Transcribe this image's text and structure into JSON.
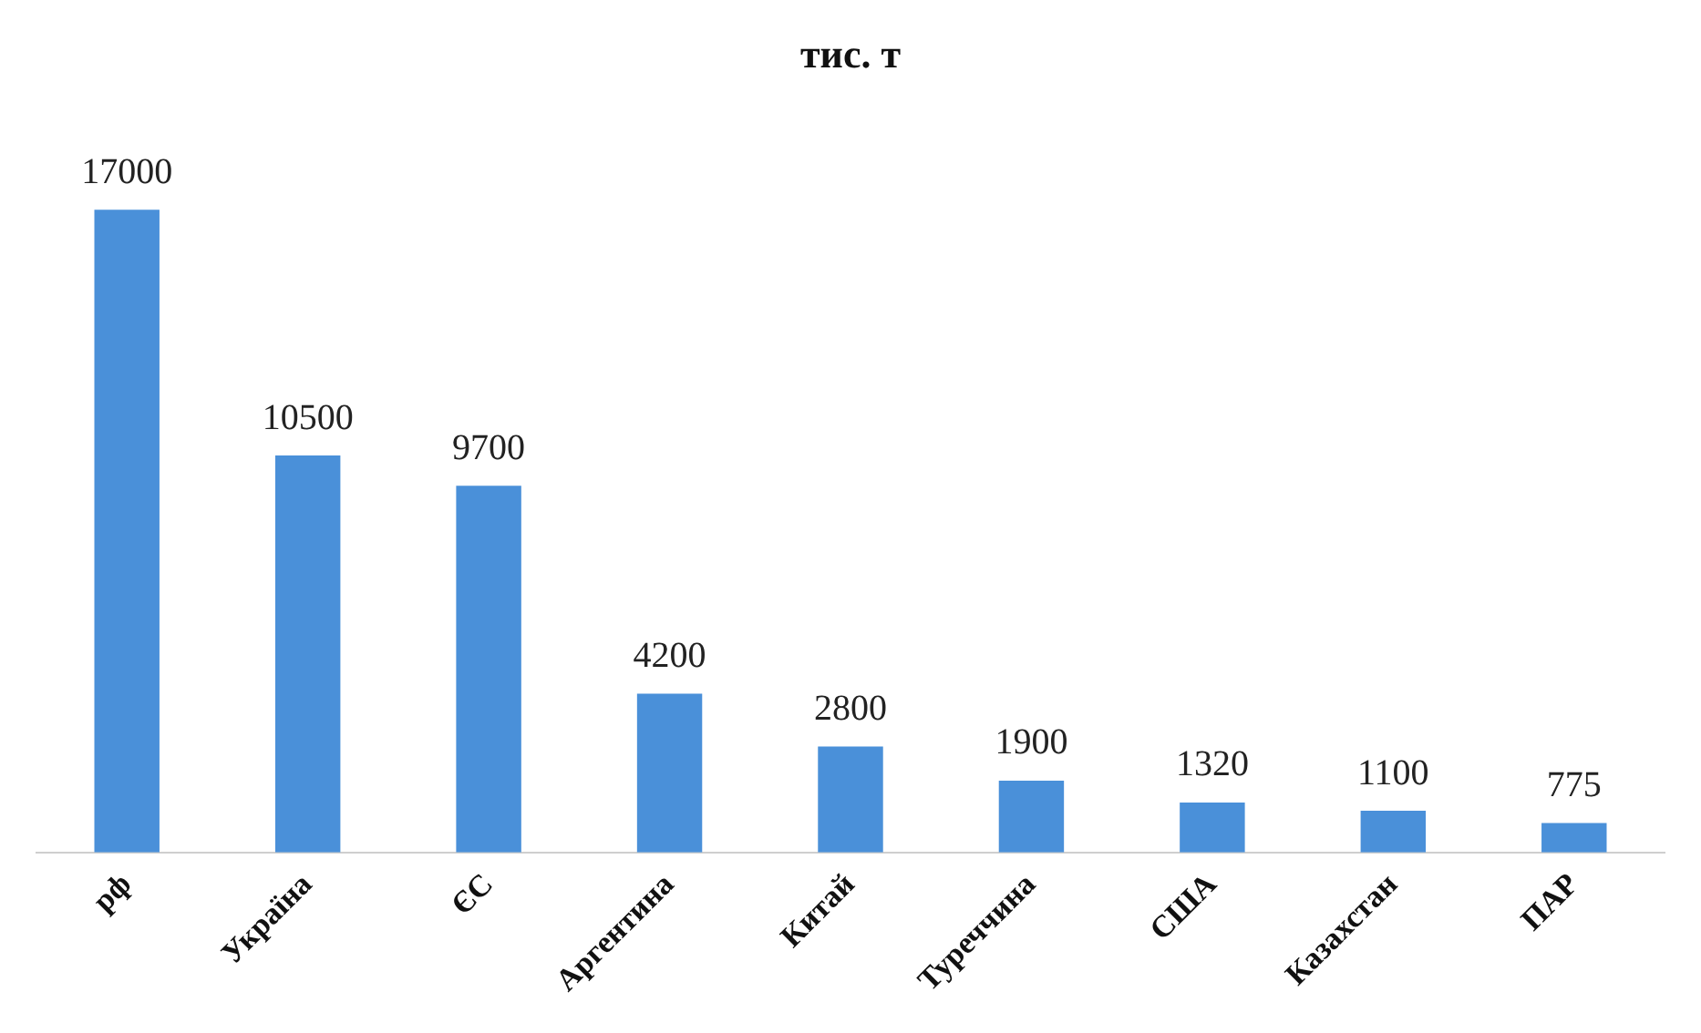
{
  "chart_data": {
    "type": "bar",
    "title": "тис. т",
    "categories": [
      "рф",
      "Україна",
      "ЄС",
      "Аргентина",
      "Китай",
      "Туреччина",
      "США",
      "Казахстан",
      "ПАР"
    ],
    "values": [
      17000,
      10500,
      9700,
      4200,
      2800,
      1900,
      1320,
      1100,
      775
    ],
    "color": "#4a90d9",
    "data_labels": true,
    "grid": false,
    "legend": false
  }
}
